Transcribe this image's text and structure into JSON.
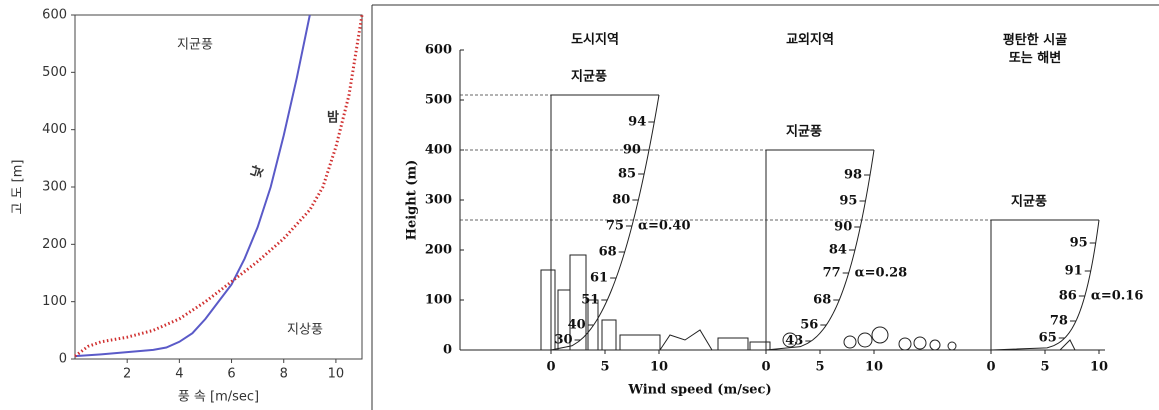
{
  "chart_data": [
    {
      "type": "line",
      "xlabel": "풍 속 [m/sec]",
      "ylabel": "고 도 [m]",
      "xlim": [
        0,
        11
      ],
      "xticks": [
        2,
        4,
        6,
        8,
        10
      ],
      "ylim": [
        0,
        600
      ],
      "yticks": [
        0,
        100,
        200,
        300,
        400,
        500,
        600
      ],
      "annotations": [
        "지균풍",
        "지상풍"
      ],
      "series": [
        {
          "name": "낮",
          "color": "#5a5ac8",
          "style": "solid",
          "x": [
            0,
            1,
            2,
            3,
            3.5,
            4,
            4.5,
            5,
            5.5,
            6,
            6.5,
            7,
            7.5,
            8,
            8.5,
            9
          ],
          "values": [
            5,
            8,
            12,
            16,
            20,
            30,
            45,
            70,
            100,
            130,
            175,
            230,
            300,
            390,
            490,
            600
          ]
        },
        {
          "name": "밤",
          "color": "#d03030",
          "style": "dotted",
          "x": [
            0,
            0.5,
            1,
            2,
            3,
            4,
            5,
            6,
            7,
            8,
            9,
            9.5,
            10,
            10.5,
            11
          ],
          "values": [
            5,
            22,
            30,
            38,
            50,
            70,
            100,
            135,
            170,
            210,
            260,
            300,
            370,
            460,
            600
          ]
        }
      ]
    },
    {
      "type": "profile",
      "xlabel": "Wind speed (m/sec)",
      "ylabel": "Height (m)",
      "ylim": [
        0,
        600
      ],
      "yticks": [
        0,
        100,
        200,
        300,
        400,
        500,
        600
      ],
      "gradient_label": "지균풍",
      "panels": [
        {
          "name": "도시지역",
          "gradient_height": 510,
          "alpha": 0.4,
          "alpha_label": "α=0.40",
          "xlim": [
            0,
            10
          ],
          "xticks": [
            0,
            5,
            10
          ],
          "percent_labels": [
            94,
            90,
            85,
            80,
            75,
            68,
            61,
            51,
            40,
            30
          ],
          "percent_heights": [
            456,
            400,
            352,
            300,
            248,
            196,
            144,
            100,
            50,
            20
          ]
        },
        {
          "name": "교외지역",
          "gradient_height": 400,
          "alpha": 0.28,
          "alpha_label": "α=0.28",
          "xlim": [
            0,
            10
          ],
          "xticks": [
            0,
            5,
            10
          ],
          "percent_labels": [
            98,
            95,
            90,
            84,
            77,
            68,
            56,
            43
          ],
          "percent_heights": [
            350,
            298,
            246,
            200,
            154,
            100,
            50,
            18
          ]
        },
        {
          "name": "평탄한 시골 또는 해변",
          "gradient_height": 260,
          "alpha": 0.16,
          "alpha_label": "α=0.16",
          "xlim": [
            0,
            10
          ],
          "xticks": [
            0,
            5,
            10
          ],
          "percent_labels": [
            95,
            91,
            86,
            78,
            65
          ],
          "percent_heights": [
            214,
            158,
            108,
            58,
            24
          ]
        }
      ]
    }
  ]
}
